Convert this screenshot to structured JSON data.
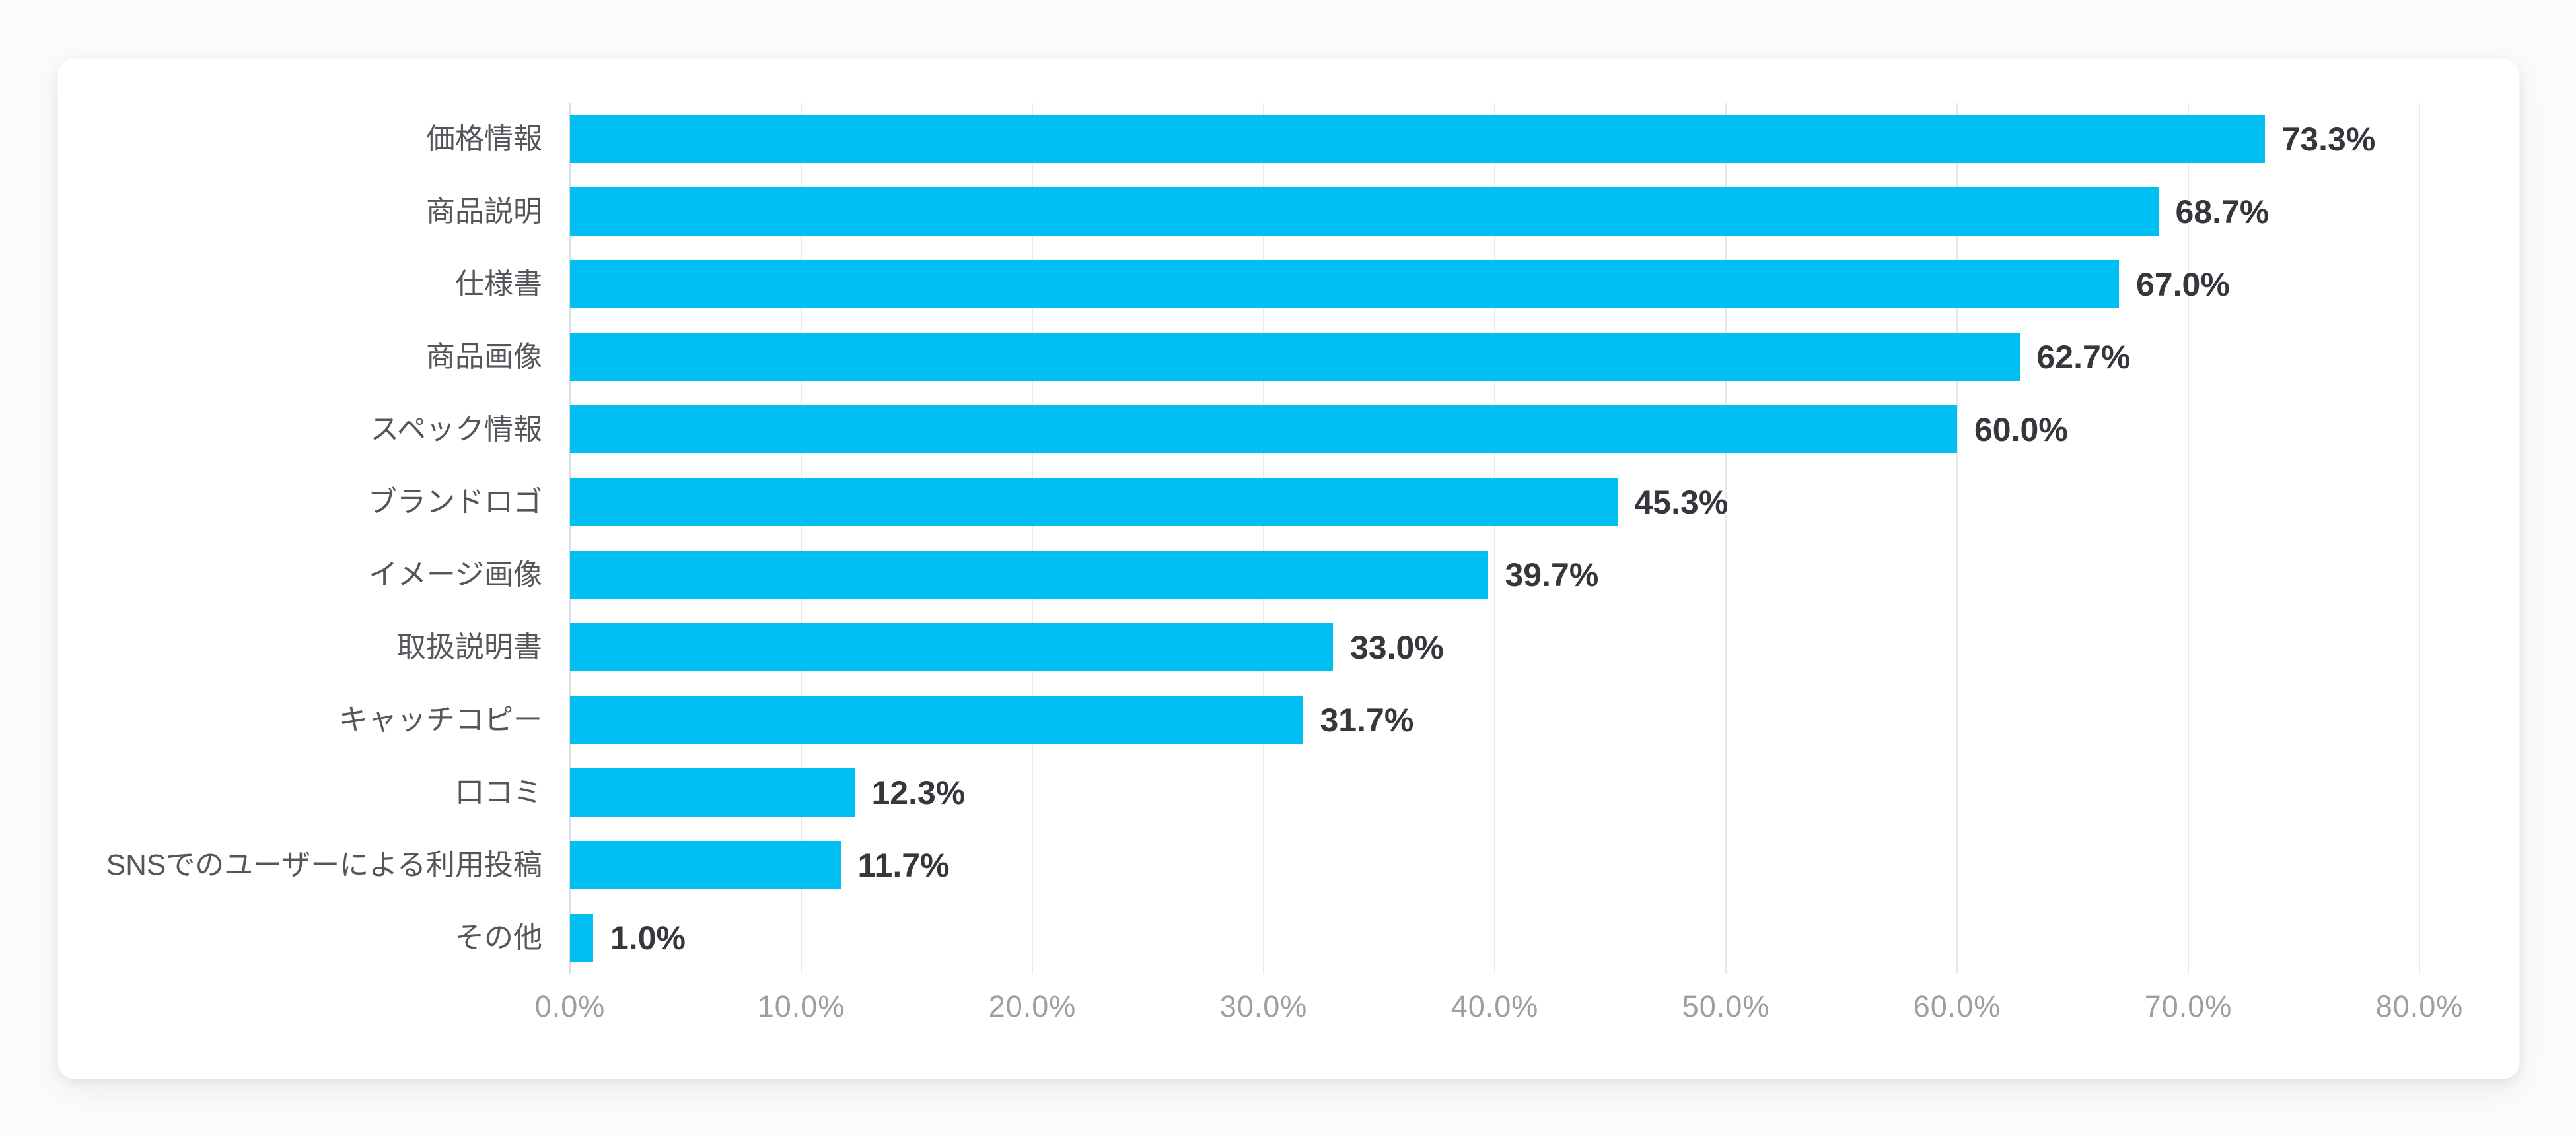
{
  "page": {
    "background_color": "#fafbfc",
    "card_color": "#ffffff"
  },
  "chart_data": {
    "type": "bar",
    "orientation": "horizontal",
    "title": "",
    "xlabel": "",
    "ylabel": "",
    "categories": [
      "価格情報",
      "商品説明",
      "仕様書",
      "商品画像",
      "スペック情報",
      "ブランドロゴ",
      "イメージ画像",
      "取扱説明書",
      "キャッチコピー",
      "口コミ",
      "SNSでのユーザーによる利用投稿",
      "その他"
    ],
    "values": [
      73.3,
      68.7,
      67.0,
      62.7,
      60.0,
      45.3,
      39.7,
      33.0,
      31.7,
      12.3,
      11.7,
      1.0
    ],
    "value_labels": [
      "73.3%",
      "68.7%",
      "67.0%",
      "62.7%",
      "60.0%",
      "45.3%",
      "39.7%",
      "33.0%",
      "31.7%",
      "12.3%",
      "11.7%",
      "1.0%"
    ],
    "xlim": [
      0,
      80
    ],
    "x_ticks": [
      "0.0%",
      "10.0%",
      "20.0%",
      "30.0%",
      "40.0%",
      "50.0%",
      "60.0%",
      "70.0%",
      "80.0%"
    ],
    "grid": true,
    "legend": false,
    "bar_color": "#00bff2",
    "category_label_color": "#53575c",
    "value_label_color": "#34383c",
    "tick_label_color": "#9b9ea3",
    "gridline_color": "#e8e9eb"
  }
}
